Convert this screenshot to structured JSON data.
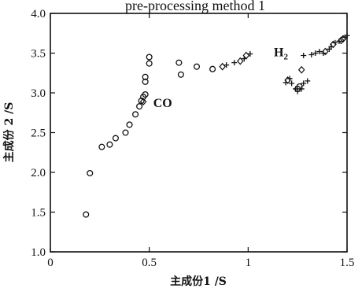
{
  "chart_data": {
    "type": "scatter",
    "title": "pre-processing method 1",
    "xlabel": "主成份1 /S",
    "ylabel": "主成份 2 /S",
    "xlim": [
      0,
      1.5
    ],
    "ylim": [
      1.0,
      4.0
    ],
    "xticks": [
      "0",
      "0.5",
      "1",
      "1.5"
    ],
    "yticks": [
      "1.0",
      "1.5",
      "2.0",
      "2.5",
      "3.0",
      "3.5",
      "4.0"
    ],
    "grid": false,
    "legend": "none",
    "annotations": [
      {
        "text": "CO",
        "x": 0.52,
        "y": 2.82
      },
      {
        "text": "H",
        "sub": "2",
        "x": 1.13,
        "y": 3.46
      }
    ],
    "series": [
      {
        "marker": "circle",
        "points": [
          [
            0.18,
            1.47
          ],
          [
            0.2,
            1.99
          ],
          [
            0.26,
            2.32
          ],
          [
            0.3,
            2.35
          ],
          [
            0.33,
            2.43
          ],
          [
            0.38,
            2.5
          ],
          [
            0.4,
            2.6
          ],
          [
            0.43,
            2.73
          ],
          [
            0.45,
            2.83
          ],
          [
            0.46,
            2.9
          ],
          [
            0.47,
            2.95
          ],
          [
            0.48,
            2.98
          ],
          [
            0.48,
            3.14
          ],
          [
            0.48,
            3.2
          ],
          [
            0.5,
            3.37
          ],
          [
            0.5,
            3.45
          ],
          [
            0.65,
            3.38
          ],
          [
            0.66,
            3.23
          ],
          [
            0.74,
            3.33
          ],
          [
            0.82,
            3.3
          ],
          [
            1.25,
            3.05
          ],
          [
            1.26,
            3.08
          ]
        ]
      },
      {
        "marker": "diamond",
        "points": [
          [
            0.47,
            2.89
          ],
          [
            0.87,
            3.33
          ],
          [
            0.96,
            3.4
          ],
          [
            0.99,
            3.47
          ],
          [
            1.2,
            3.16
          ],
          [
            1.27,
            3.29
          ],
          [
            1.39,
            3.52
          ],
          [
            1.43,
            3.61
          ],
          [
            1.47,
            3.66
          ],
          [
            1.48,
            3.68
          ]
        ]
      },
      {
        "marker": "plus",
        "points": [
          [
            0.89,
            3.35
          ],
          [
            0.93,
            3.38
          ],
          [
            0.98,
            3.43
          ],
          [
            1.01,
            3.49
          ],
          [
            1.19,
            3.13
          ],
          [
            1.21,
            3.18
          ],
          [
            1.22,
            3.12
          ],
          [
            1.24,
            3.05
          ],
          [
            1.25,
            3.02
          ],
          [
            1.27,
            3.05
          ],
          [
            1.28,
            3.12
          ],
          [
            1.3,
            3.15
          ],
          [
            1.28,
            3.47
          ],
          [
            1.32,
            3.48
          ],
          [
            1.34,
            3.5
          ],
          [
            1.36,
            3.52
          ],
          [
            1.38,
            3.5
          ],
          [
            1.41,
            3.55
          ],
          [
            1.42,
            3.58
          ],
          [
            1.44,
            3.63
          ],
          [
            1.46,
            3.65
          ],
          [
            1.49,
            3.7
          ],
          [
            1.5,
            3.72
          ]
        ]
      }
    ]
  }
}
